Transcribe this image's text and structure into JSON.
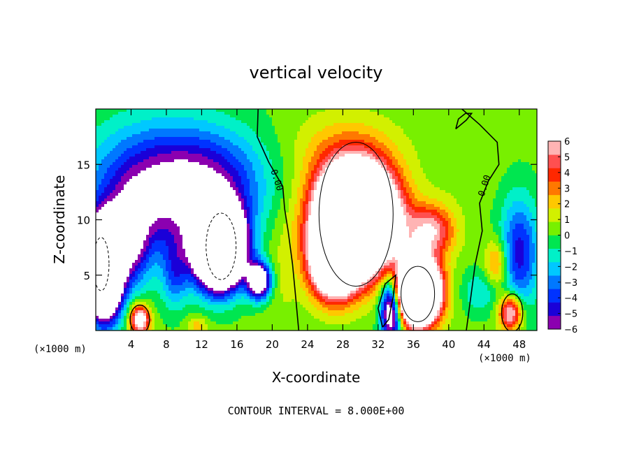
{
  "chart_data": {
    "type": "heatmap",
    "title": "vertical velocity",
    "xlabel": "X-coordinate",
    "ylabel": "Z-coordinate",
    "x_unit_left": "(×1000 m)",
    "x_unit_right": "(×1000 m)",
    "footer": "CONTOUR INTERVAL = 8.000E+00",
    "xlim": [
      0,
      50
    ],
    "ylim": [
      0,
      20
    ],
    "x_ticks": [
      4,
      8,
      12,
      16,
      20,
      24,
      28,
      32,
      36,
      40,
      44,
      48
    ],
    "x_tick_labels": [
      "4",
      "8",
      "12",
      "16",
      "20",
      "24",
      "28",
      "32",
      "36",
      "40",
      "44",
      "48"
    ],
    "y_ticks": [
      5,
      10,
      15
    ],
    "y_tick_labels": [
      "5",
      "10",
      "15"
    ],
    "colorbar": {
      "min": -6,
      "max": 6,
      "ticks": [
        6,
        5,
        4,
        3,
        2,
        1,
        0,
        -1,
        -2,
        -3,
        -4,
        -5,
        -6
      ],
      "tick_labels": [
        "6",
        "5",
        "4",
        "3",
        "2",
        "1",
        "0",
        "−1",
        "−2",
        "−3",
        "−4",
        "−5",
        "−6"
      ],
      "colors": [
        "#8b00b0",
        "#1a00d8",
        "#0033ff",
        "#0078ff",
        "#00c8ff",
        "#00f0c8",
        "#00e650",
        "#78f000",
        "#d2f000",
        "#ffc800",
        "#ff7800",
        "#ff2800",
        "#ff5050",
        "#ffb4b4"
      ]
    },
    "contour_labels": [
      "0.00",
      "0.00"
    ],
    "grid": false
  }
}
